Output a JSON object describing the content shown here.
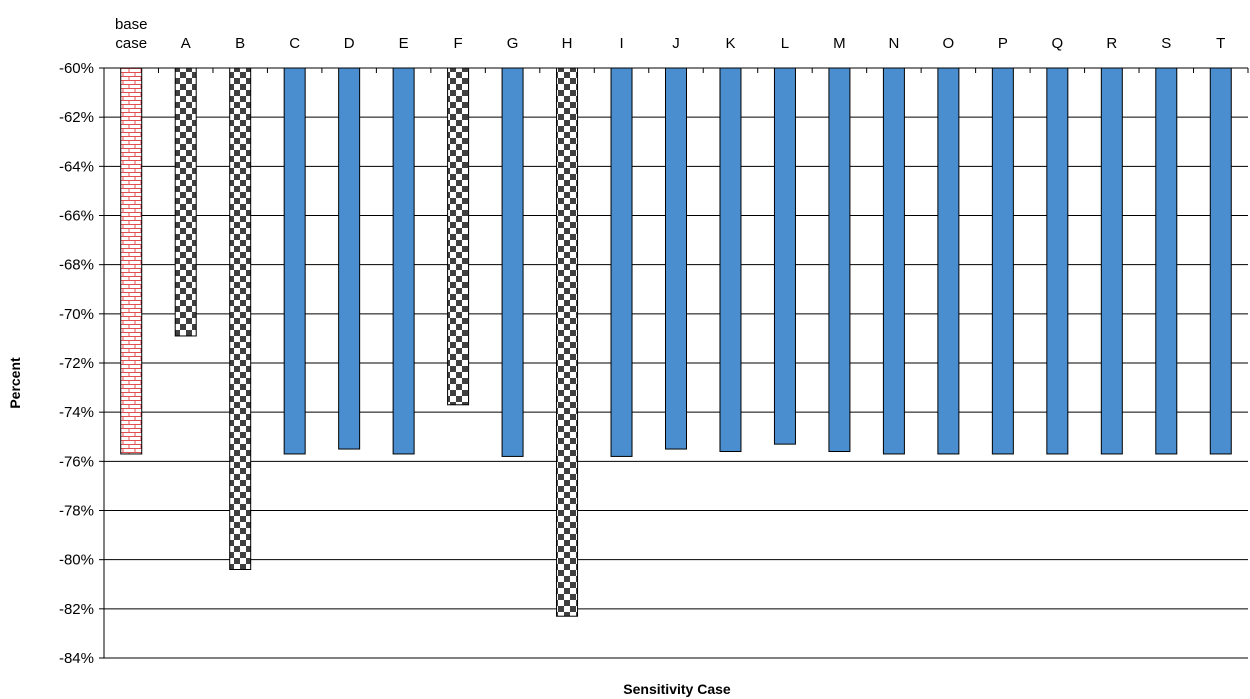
{
  "chart_data": {
    "type": "bar",
    "title": "",
    "xlabel": "Sensitivity Case",
    "ylabel": "Percent",
    "ylim": [
      -84,
      -60
    ],
    "y_ticks": [
      "-60%",
      "-62%",
      "-64%",
      "-66%",
      "-68%",
      "-70%",
      "-72%",
      "-74%",
      "-76%",
      "-78%",
      "-80%",
      "-82%",
      "-84%"
    ],
    "category_axis_position": "top",
    "grid": true,
    "categories": [
      [
        "base",
        "case"
      ],
      [
        "A"
      ],
      [
        "B"
      ],
      [
        "C"
      ],
      [
        "D"
      ],
      [
        "E"
      ],
      [
        "F"
      ],
      [
        "G"
      ],
      [
        "H"
      ],
      [
        "I"
      ],
      [
        "J"
      ],
      [
        "K"
      ],
      [
        "L"
      ],
      [
        "M"
      ],
      [
        "N"
      ],
      [
        "O"
      ],
      [
        "P"
      ],
      [
        "Q"
      ],
      [
        "R"
      ],
      [
        "S"
      ],
      [
        "T"
      ]
    ],
    "values": [
      -75.7,
      -70.9,
      -80.4,
      -75.7,
      -75.5,
      -75.7,
      -73.7,
      -75.8,
      -82.3,
      -75.8,
      -75.5,
      -75.6,
      -75.3,
      -75.6,
      -75.7,
      -75.7,
      -75.7,
      -75.7,
      -75.7,
      -75.7,
      -75.7
    ],
    "patterns": [
      "brick",
      "checker",
      "checker",
      "solid",
      "solid",
      "solid",
      "checker",
      "solid",
      "checker",
      "solid",
      "solid",
      "solid",
      "solid",
      "solid",
      "solid",
      "solid",
      "solid",
      "solid",
      "solid",
      "solid",
      "solid"
    ],
    "colors": {
      "solid": "#4a8ecf",
      "brick": "#e05050",
      "checker": "#404040",
      "grid": "#000000"
    }
  }
}
